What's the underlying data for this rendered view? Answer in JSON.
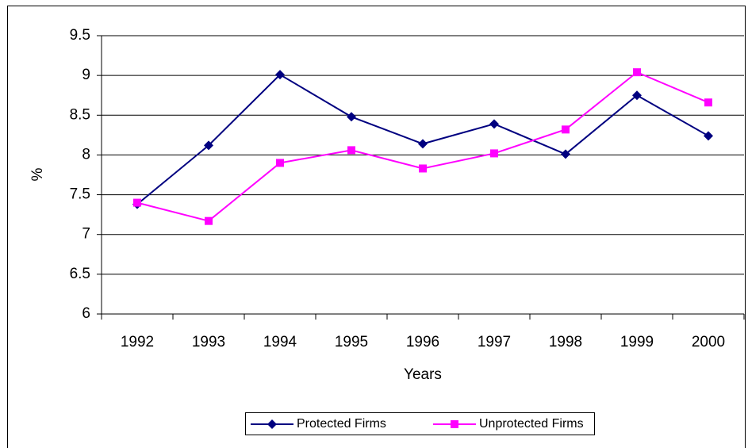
{
  "chart_data": {
    "type": "line",
    "categories": [
      "1992",
      "1993",
      "1994",
      "1995",
      "1996",
      "1997",
      "1998",
      "1999",
      "2000"
    ],
    "series": [
      {
        "name": "Protected Firms",
        "color": "#000080",
        "values": [
          7.38,
          8.12,
          9.01,
          8.48,
          8.14,
          8.39,
          8.01,
          8.75,
          8.24
        ]
      },
      {
        "name": "Unprotected Firms",
        "color": "#ff00ff",
        "values": [
          7.4,
          7.17,
          7.9,
          8.06,
          7.83,
          8.02,
          8.32,
          9.04,
          8.66
        ]
      }
    ],
    "x_label": "Years",
    "y_label": "%",
    "ylim": [
      6,
      9.5
    ],
    "yticks": [
      6,
      6.5,
      7,
      7.5,
      8,
      8.5,
      9,
      9.5
    ],
    "grid": true
  }
}
